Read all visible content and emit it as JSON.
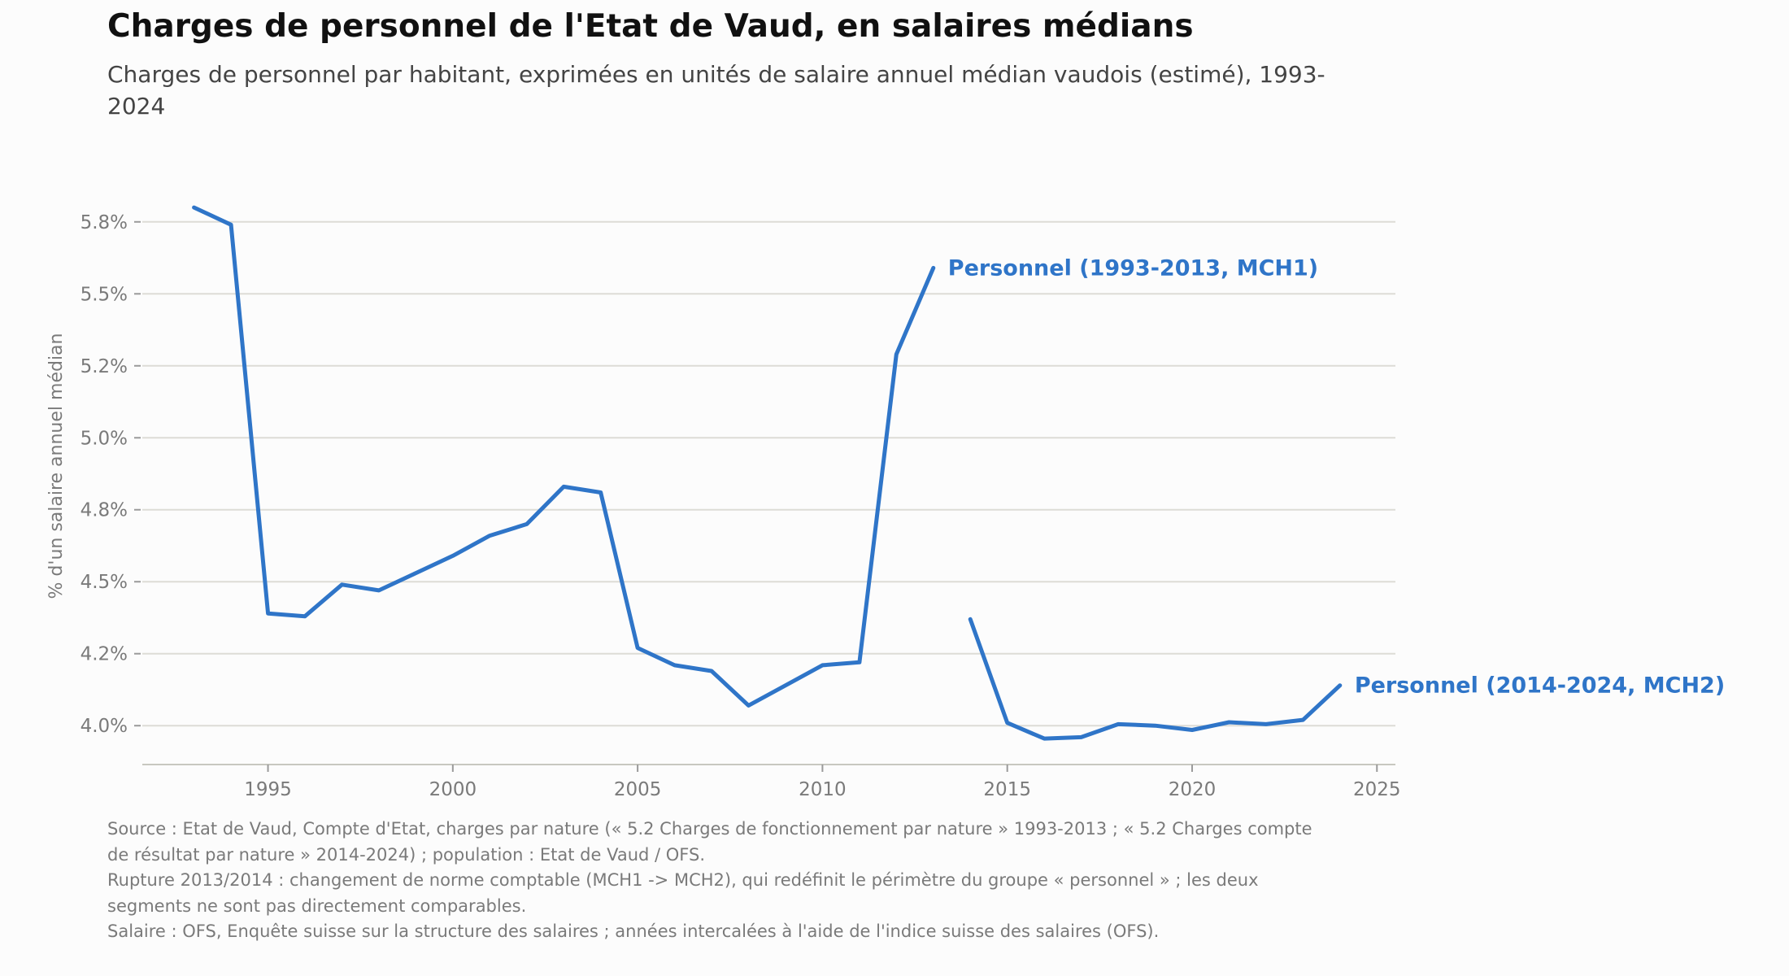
{
  "chart_data": {
    "type": "line",
    "title": "Charges de personnel de l'Etat de Vaud, en salaires médians",
    "subtitle": "Charges de personnel par habitant, exprimées en unités de salaire annuel médian vaudois (estimé), 1993-2024",
    "ylabel": "% d'un salaire annuel médian",
    "xlabel": "",
    "xlim": [
      1991.6,
      2025.5
    ],
    "ylim": [
      3.865,
      5.885
    ],
    "x_ticks": [
      1995,
      2000,
      2005,
      2010,
      2015,
      2020,
      2025
    ],
    "x_tick_labels": [
      "1995",
      "2000",
      "2005",
      "2010",
      "2015",
      "2020",
      "2025"
    ],
    "y_ticks": [
      4.0,
      4.25,
      4.5,
      4.75,
      5.0,
      5.25,
      5.5,
      5.75
    ],
    "y_tick_labels": [
      "4.0%",
      "4.2%",
      "4.5%",
      "4.8%",
      "5.0%",
      "5.2%",
      "5.5%",
      "5.8%"
    ],
    "grid": "horizontal",
    "color": "#2f75c8",
    "series": [
      {
        "name": "Personnel (1993-2013, MCH1)",
        "x": [
          1993,
          1994,
          1995,
          1996,
          1997,
          1998,
          1999,
          2000,
          2001,
          2002,
          2003,
          2004,
          2005,
          2006,
          2007,
          2008,
          2009,
          2010,
          2011,
          2012,
          2013
        ],
        "values": [
          5.8,
          5.74,
          4.39,
          4.38,
          4.49,
          4.47,
          4.53,
          4.59,
          4.66,
          4.7,
          4.83,
          4.81,
          4.27,
          4.21,
          4.19,
          4.07,
          4.14,
          4.21,
          4.22,
          5.29,
          5.59
        ]
      },
      {
        "name": "Personnel (2014-2024, MCH2)",
        "x": [
          2014,
          2015,
          2016,
          2017,
          2018,
          2019,
          2020,
          2021,
          2022,
          2023,
          2024
        ],
        "values": [
          4.37,
          4.01,
          3.955,
          3.96,
          4.005,
          4.0,
          3.985,
          4.012,
          4.005,
          4.02,
          4.14
        ]
      }
    ]
  },
  "notes": [
    "Source : Etat de Vaud, Compte d'Etat, charges par nature (« 5.2 Charges de fonctionnement par nature » 1993-2013 ; « 5.2 Charges compte de résultat par nature » 2014-2024) ; population : Etat de Vaud / OFS.",
    "Rupture 2013/2014 : changement de norme comptable (MCH1 -> MCH2), qui redéfinit le périmètre du groupe « personnel » ; les deux segments ne sont pas directement comparables.",
    "Salaire : OFS, Enquête suisse sur la structure des salaires ; années intercalées à l'aide de l'indice suisse des salaires (OFS)."
  ]
}
